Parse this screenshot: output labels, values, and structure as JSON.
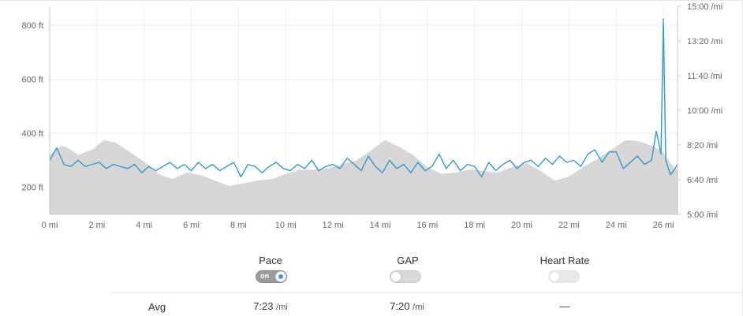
{
  "chart_data": {
    "type": "line",
    "x_unit": "mi",
    "x_ticks": [
      "0 mi",
      "2 mi",
      "4 mi",
      "6 mi",
      "8 mi",
      "10 mi",
      "12 mi",
      "14 mi",
      "16 mi",
      "18 mi",
      "20 mi",
      "22 mi",
      "24 mi",
      "26 mi"
    ],
    "xlim": [
      0,
      26.6
    ],
    "y_left_ticks": [
      "200 ft",
      "400 ft",
      "600 ft",
      "800 ft"
    ],
    "y_left_range_ft": [
      100,
      870
    ],
    "y_right_ticks": [
      "5:00 /mi",
      "6:40 /mi",
      "8:20 /mi",
      "10:00 /mi",
      "11:40 /mi",
      "13:20 /mi",
      "15:00 /mi"
    ],
    "y_right_range_min_per_mi": [
      5.0,
      15.0
    ],
    "grid": true,
    "series": [
      {
        "type": "area",
        "color": "#d6d6d6",
        "distance_mi": [
          0,
          0.5,
          0.8,
          1.2,
          1.8,
          2.3,
          2.8,
          3.4,
          4.0,
          4.6,
          5.2,
          5.8,
          6.4,
          7.0,
          7.6,
          8.2,
          8.8,
          9.4,
          10.0,
          10.6,
          11.2,
          11.8,
          12.4,
          13.0,
          13.6,
          14.2,
          14.8,
          15.4,
          16.0,
          16.6,
          17.2,
          17.8,
          18.4,
          19.0,
          19.6,
          20.2,
          20.8,
          21.4,
          22.0,
          22.6,
          23.2,
          23.8,
          24.4,
          25.0,
          25.6,
          26.0,
          26.3,
          26.6
        ],
        "elevation_ft": [
          320,
          355,
          345,
          320,
          340,
          375,
          365,
          330,
          295,
          250,
          230,
          255,
          245,
          225,
          205,
          215,
          225,
          230,
          250,
          265,
          265,
          270,
          285,
          300,
          335,
          375,
          350,
          320,
          275,
          250,
          255,
          265,
          260,
          255,
          275,
          290,
          260,
          225,
          240,
          275,
          305,
          340,
          375,
          370,
          350,
          330,
          290,
          260
        ]
      },
      {
        "type": "line",
        "color": "#2b9ed4",
        "distance_mi": [
          0,
          0.3,
          0.6,
          0.9,
          1.2,
          1.5,
          1.8,
          2.1,
          2.4,
          2.7,
          3.0,
          3.3,
          3.6,
          3.9,
          4.2,
          4.5,
          4.8,
          5.1,
          5.4,
          5.7,
          6.0,
          6.3,
          6.6,
          6.9,
          7.2,
          7.5,
          7.8,
          8.1,
          8.4,
          8.7,
          9.0,
          9.3,
          9.6,
          9.9,
          10.2,
          10.5,
          10.8,
          11.1,
          11.4,
          11.7,
          12.0,
          12.3,
          12.6,
          12.9,
          13.2,
          13.5,
          13.8,
          14.1,
          14.4,
          14.7,
          15.0,
          15.3,
          15.6,
          15.9,
          16.2,
          16.5,
          16.8,
          17.1,
          17.4,
          17.7,
          18.0,
          18.3,
          18.6,
          18.9,
          19.2,
          19.5,
          19.8,
          20.1,
          20.4,
          20.7,
          21.0,
          21.3,
          21.6,
          21.9,
          22.2,
          22.5,
          22.8,
          23.1,
          23.4,
          23.7,
          24.0,
          24.3,
          24.6,
          24.9,
          25.2,
          25.5,
          25.7,
          25.9,
          26.0,
          26.1,
          26.3,
          26.5,
          26.6
        ],
        "pace_min_per_mi": [
          7.6,
          8.2,
          7.4,
          7.3,
          7.6,
          7.3,
          7.4,
          7.5,
          7.2,
          7.4,
          7.3,
          7.2,
          7.4,
          7.0,
          7.3,
          7.1,
          7.3,
          7.5,
          7.2,
          7.4,
          7.1,
          7.5,
          7.2,
          7.4,
          7.1,
          7.3,
          7.5,
          6.8,
          7.4,
          7.3,
          7.0,
          7.3,
          7.5,
          7.2,
          7.1,
          7.4,
          7.2,
          7.6,
          7.1,
          7.3,
          7.4,
          7.2,
          7.7,
          7.4,
          7.1,
          7.8,
          7.3,
          7.0,
          7.6,
          7.2,
          7.4,
          7.0,
          7.5,
          7.1,
          7.3,
          7.9,
          7.2,
          7.6,
          7.1,
          7.4,
          7.3,
          6.8,
          7.5,
          7.1,
          7.4,
          7.6,
          7.2,
          7.5,
          7.6,
          7.3,
          7.7,
          7.4,
          7.8,
          7.5,
          7.6,
          7.3,
          7.9,
          8.1,
          7.5,
          8.0,
          8.0,
          7.2,
          7.5,
          7.8,
          7.4,
          7.6,
          9.0,
          7.9,
          14.4,
          7.6,
          6.9,
          7.2,
          7.4
        ]
      }
    ]
  },
  "controls": [
    {
      "label": "Pace",
      "state": "on",
      "toggle_text": "on"
    },
    {
      "label": "GAP",
      "state": "off"
    },
    {
      "label": "Heart Rate",
      "state": "off",
      "disabled": true
    }
  ],
  "avg": {
    "label": "Avg",
    "pace": "7:23",
    "pace_unit": "/mi",
    "gap": "7:20",
    "gap_unit": "/mi",
    "heart_rate": "—"
  },
  "colors": {
    "pace_line": "#2b9ed4",
    "elevation_fill": "#d6d6d6",
    "toggle_on_dot": "#2aa1d9"
  }
}
